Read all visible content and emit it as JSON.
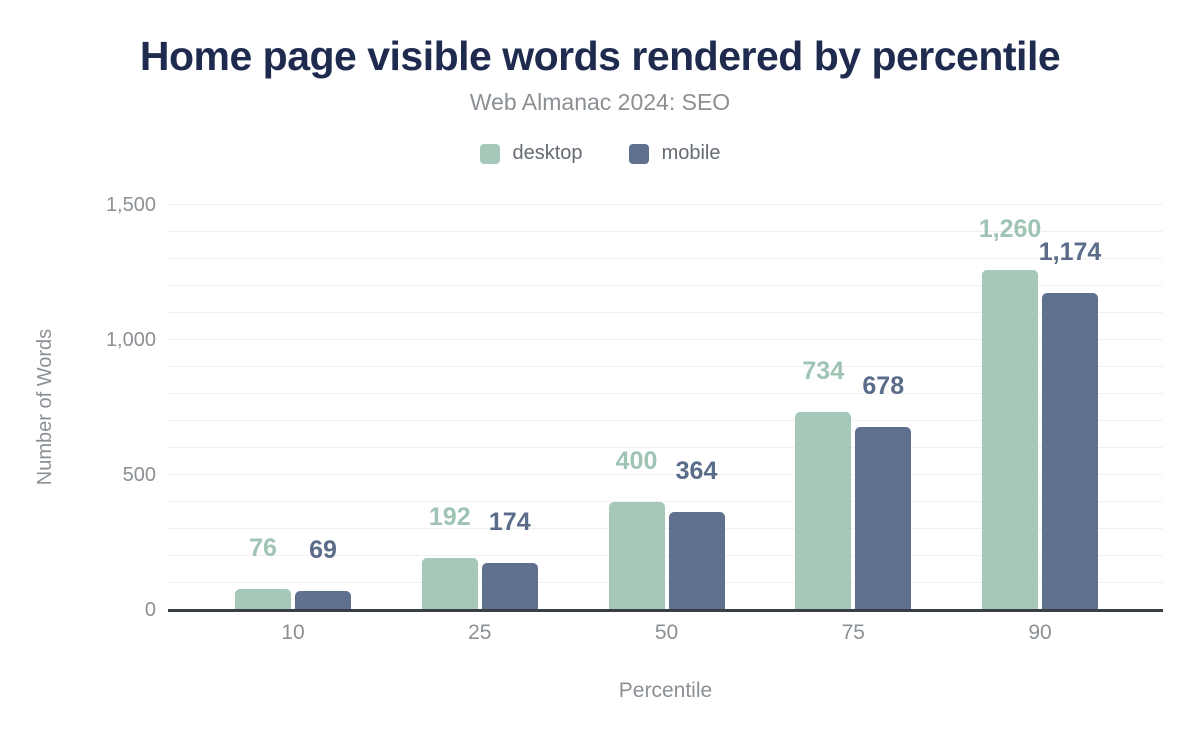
{
  "chart_data": {
    "type": "bar",
    "title": "Home page visible words rendered by percentile",
    "subtitle": "Web Almanac 2024: SEO",
    "categories": [
      "10",
      "25",
      "50",
      "75",
      "90"
    ],
    "series": [
      {
        "name": "desktop",
        "color": "#a5c8b8",
        "label_color": "#a0c4b3",
        "values": [
          76,
          192,
          400,
          734,
          1260
        ]
      },
      {
        "name": "mobile",
        "color": "#5f718e",
        "label_color": "#5a6c89",
        "values": [
          69,
          174,
          364,
          678,
          1174
        ]
      }
    ],
    "xlabel": "Percentile",
    "ylabel": "Number of Words",
    "ylim": [
      0,
      1500
    ],
    "yticks": [
      "0",
      "500",
      "1,000",
      "1,500"
    ],
    "ytick_values": [
      0,
      500,
      1000,
      1500
    ],
    "minor_gridline_step": 100,
    "grid": "on",
    "legend_position": "top",
    "data_labels": "on",
    "colors": {
      "title": "#1f2b4e",
      "subtitle": "#8b9095",
      "axis_text": "#8b9095",
      "legend_text": "#646b73",
      "gridline": "#f1f1f2",
      "axis_line": "#3a3e45"
    }
  }
}
